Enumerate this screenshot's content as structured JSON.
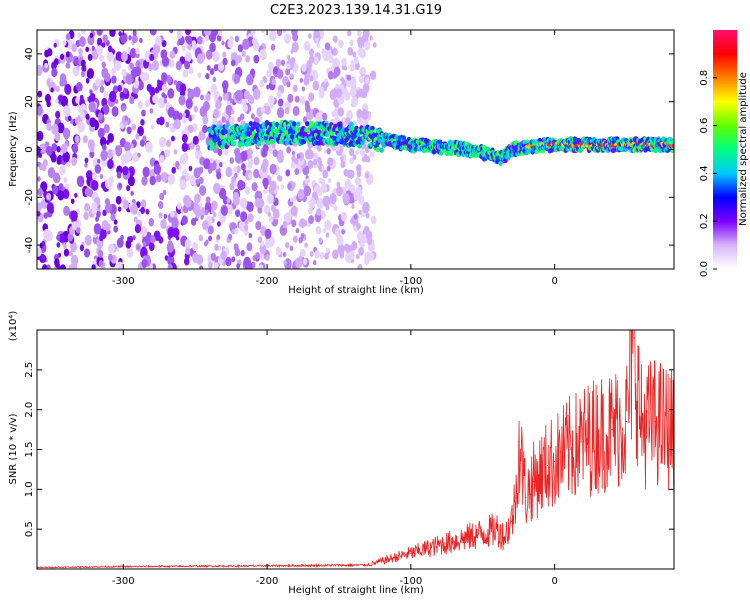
{
  "title": "C2E3.2023.139.14.31.G19",
  "chart_data": [
    {
      "type": "heatmap",
      "xlabel": "Height of straight line (km)",
      "ylabel": "Frequency (Hz)",
      "xlim": [
        -360,
        83
      ],
      "ylim": [
        -50,
        50
      ],
      "xticks": [
        -300,
        -200,
        -100,
        0
      ],
      "yticks": [
        -40,
        -20,
        0,
        20,
        40
      ],
      "grid": false,
      "colorbar": {
        "label": "Normalized spectral amplitude",
        "range": [
          0,
          1
        ],
        "ticks": [
          "0.0",
          "0.2",
          "0.4",
          "0.6",
          "0.8"
        ],
        "colors": [
          "#ffffff",
          "#d8b4f8",
          "#7b00ff",
          "#0000ff",
          "#00c8ff",
          "#00ff80",
          "#60ff00",
          "#ffff00",
          "#ff8000",
          "#ff0000",
          "#ff1070"
        ]
      },
      "features": {
        "scattered_noise_region_km": [
          -360,
          -125
        ],
        "signal_band_start_km": -240,
        "signal_band_center_hz_by_height": {
          "x": [
            -240,
            -200,
            -160,
            -140,
            -120,
            -100,
            -80,
            -60,
            -45,
            -40,
            -35,
            -30,
            -20,
            0,
            40,
            83
          ],
          "y": [
            5,
            7,
            7,
            6,
            4,
            2,
            1,
            0,
            -2,
            -4,
            -3,
            0,
            1,
            2,
            2,
            2
          ]
        }
      }
    },
    {
      "type": "line",
      "xlabel": "Height of straight line (km)",
      "ylabel": "SNR (10 * v/v)",
      "y_multiplier": "(x10⁴)",
      "xlim": [
        -360,
        83
      ],
      "ylim": [
        0,
        3.0
      ],
      "xticks": [
        -300,
        -200,
        -100,
        0
      ],
      "yticks": [
        "0.5",
        "1.0",
        "1.5",
        "2.0",
        "2.5"
      ],
      "grid": false,
      "series": [
        {
          "color": "#ee2222",
          "x": [
            -360,
            -300,
            -200,
            -130,
            -120,
            -110,
            -100,
            -90,
            -80,
            -70,
            -60,
            -50,
            -40,
            -35,
            -30,
            -27,
            -25,
            -22,
            -20,
            -18,
            -15,
            -10,
            -5,
            0,
            10,
            20,
            30,
            40,
            50,
            55,
            60,
            70,
            83
          ],
          "y": [
            0.02,
            0.03,
            0.04,
            0.05,
            0.1,
            0.15,
            0.2,
            0.25,
            0.3,
            0.35,
            0.4,
            0.45,
            0.5,
            0.4,
            0.6,
            0.9,
            1.6,
            1.2,
            0.9,
            1.0,
            1.1,
            1.2,
            1.3,
            1.35,
            1.5,
            1.6,
            1.7,
            1.75,
            1.85,
            2.9,
            1.8,
            1.85,
            1.75
          ]
        }
      ]
    }
  ]
}
